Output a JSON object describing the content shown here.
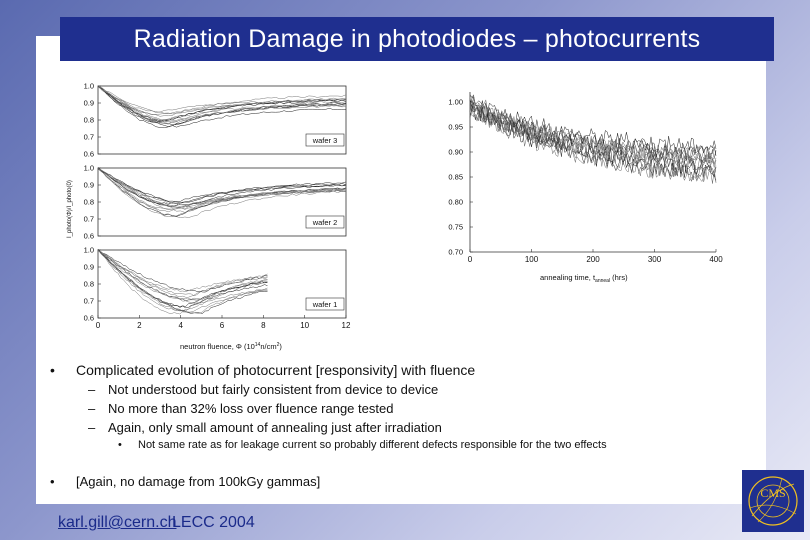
{
  "slide": {
    "title": "Radiation Damage in photodiodes – photocurrents",
    "colors": {
      "title_bar": "#1f2f8f",
      "background_gradient_start": "#5a6ab0",
      "background_gradient_end": "#e9eaf6"
    }
  },
  "left_figure": {
    "y_ticks": [
      "1.0",
      "0.9",
      "0.8",
      "0.7",
      "0.6"
    ],
    "x_ticks": [
      "0",
      "2",
      "4",
      "6",
      "8",
      "10",
      "12"
    ],
    "x_label": "neutron fluence, Φ (10",
    "x_label_exp": "14",
    "x_label_unit": "n/cm",
    "x_label_unit_exp": "2",
    "x_label_close": ")",
    "y_label": "I_photo(Φ)/I_photo(0)",
    "wafer_labels": [
      "wafer 3",
      "wafer 2",
      "wafer 1"
    ]
  },
  "right_figure": {
    "y_ticks": [
      "1.00",
      "0.95",
      "0.90",
      "0.85",
      "0.80",
      "0.75",
      "0.70"
    ],
    "x_ticks": [
      "0",
      "100",
      "200",
      "300",
      "400"
    ],
    "x_label": "annealing time, t",
    "x_label_sub": "anneal",
    "x_label_unit": " (hrs)"
  },
  "bullets": {
    "main": "Complicated evolution of photocurrent [responsivity] with fluence",
    "subs": [
      "Not understood but fairly consistent from device to device",
      "No more than 32% loss over fluence range tested",
      "Again, only small amount of annealing just after irradiation"
    ],
    "subsub": "Not same rate as for leakage current so probably different defects responsible for the two effects",
    "last": "[Again, no damage from 100kGy gammas]",
    "bullet_char": "•",
    "dash_char": "–"
  },
  "footer": {
    "email": "karl.gill@cern.ch",
    "conference": "LECC 2004",
    "logo_text": "CMS"
  }
}
